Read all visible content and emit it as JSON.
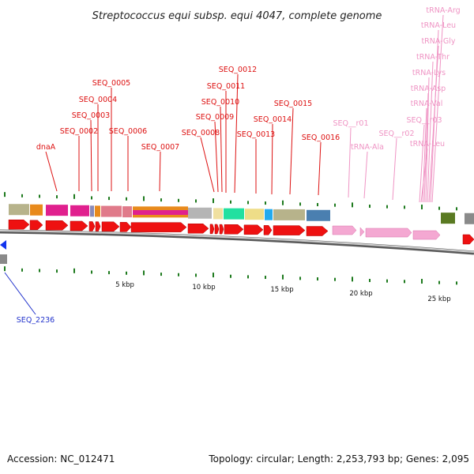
{
  "title": "Streptococcus equi subsp. equi 4047, complete genome",
  "footer": {
    "accession": "Accession: NC_012471",
    "summary": "Topology: circular; Length: 2,253,793 bp; Genes: 2,095"
  },
  "scale_labels": [
    "5 kbp",
    "10 kbp",
    "15 kbp",
    "20 kbp",
    "25 kbp"
  ],
  "colors": {
    "cds": "#ee1111",
    "rna": "#f4a8d2",
    "label_cds": "#dd1111",
    "label_rna": "#ef94c4",
    "label_reverse": "#2233cc",
    "backbone": "#888888",
    "ticks": "#1e7a1e"
  },
  "gene_labels": [
    {
      "name": "dnaA",
      "type": "cds"
    },
    {
      "name": "SEQ_0002",
      "type": "cds"
    },
    {
      "name": "SEQ_0003",
      "type": "cds"
    },
    {
      "name": "SEQ_0004",
      "type": "cds"
    },
    {
      "name": "SEQ_0005",
      "type": "cds"
    },
    {
      "name": "SEQ_0006",
      "type": "cds"
    },
    {
      "name": "SEQ_0007",
      "type": "cds"
    },
    {
      "name": "SEQ_0008",
      "type": "cds"
    },
    {
      "name": "SEQ_0009",
      "type": "cds"
    },
    {
      "name": "SEQ_0010",
      "type": "cds"
    },
    {
      "name": "SEQ_0011",
      "type": "cds"
    },
    {
      "name": "SEQ_0012",
      "type": "cds"
    },
    {
      "name": "SEQ_0013",
      "type": "cds"
    },
    {
      "name": "SEQ_0014",
      "type": "cds"
    },
    {
      "name": "SEQ_0015",
      "type": "cds"
    },
    {
      "name": "SEQ_0016",
      "type": "cds"
    },
    {
      "name": "SEQ__r01",
      "type": "rna"
    },
    {
      "name": "tRNA-Ala",
      "type": "rna"
    },
    {
      "name": "SEQ__r02",
      "type": "rna"
    },
    {
      "name": "SEQ__r03",
      "type": "rna"
    },
    {
      "name": "tRNA-Leu",
      "type": "rna"
    },
    {
      "name": "tRNA-Val",
      "type": "rna"
    },
    {
      "name": "tRNA-Asp",
      "type": "rna"
    },
    {
      "name": "tRNA-Lys",
      "type": "rna"
    },
    {
      "name": "tRNA-Thr",
      "type": "rna"
    },
    {
      "name": "tRNA-Gly",
      "type": "rna"
    },
    {
      "name": "tRNA-Leu",
      "type": "rna"
    },
    {
      "name": "tRNA-Arg",
      "type": "rna"
    },
    {
      "name": "SEQ_2236",
      "type": "reverse"
    }
  ]
}
